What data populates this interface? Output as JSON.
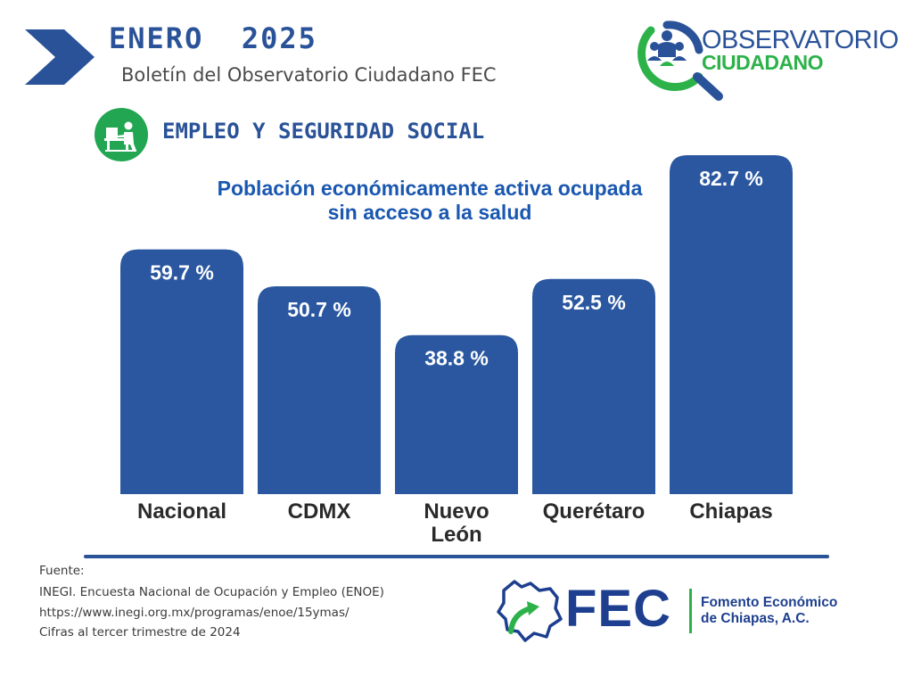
{
  "header": {
    "month_title": "ENERO  2025",
    "subtitle": "Boletín del Observatorio Ciudadano FEC"
  },
  "brand_logo": {
    "line1": "OBSERVATORIO",
    "line2": "CIUDADANO"
  },
  "section": {
    "title": "EMPLEO Y SEGURIDAD SOCIAL",
    "icon": "desk-worker-icon"
  },
  "colors": {
    "bar": "#2a57a0",
    "brand_blue": "#2a5298",
    "brand_green": "#2db24a",
    "title_blue": "#1a57b0"
  },
  "chart_data": {
    "type": "bar",
    "title": "Población económicamente activa ocupada sin acceso a la salud",
    "categories": [
      "Nacional",
      "CDMX",
      "Nuevo León",
      "Querétaro",
      "Chiapas"
    ],
    "values": [
      59.7,
      50.7,
      38.8,
      52.5,
      82.7
    ],
    "value_labels": [
      "59.7 %",
      "50.7 %",
      "38.8 %",
      "52.5 %",
      "82.7 %"
    ],
    "ylim": [
      0,
      100
    ],
    "grid": false,
    "legend": "none"
  },
  "source": {
    "line1": "Fuente:",
    "line2": "INEGI. Encuesta Nacional de Ocupación y Empleo (ENOE)",
    "line3": "https://www.inegi.org.mx/programas/enoe/15ymas/",
    "line4": "Cifras al tercer trimestre de 2024"
  },
  "footer_logo": {
    "acronym": "FEC",
    "name_line1": "Fomento Económico",
    "name_line2": "de Chiapas, A.C.",
    "icon": "chiapas-map-arrow-icon"
  }
}
